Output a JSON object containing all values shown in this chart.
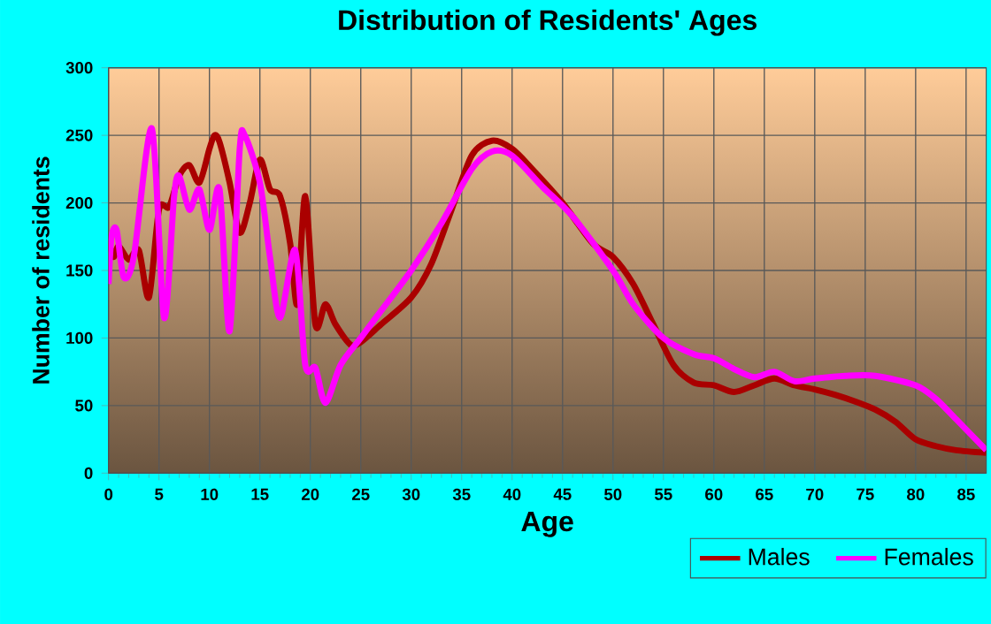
{
  "chart_data": {
    "type": "line",
    "title": "Distribution of Residents' Ages",
    "xlabel": "Age",
    "ylabel": "Number of residents",
    "xlim": [
      0,
      87
    ],
    "ylim": [
      0,
      300
    ],
    "xticks": [
      0,
      5,
      10,
      15,
      20,
      25,
      30,
      35,
      40,
      45,
      50,
      55,
      60,
      65,
      70,
      75,
      80,
      85
    ],
    "yticks": [
      0,
      50,
      100,
      150,
      200,
      250,
      300
    ],
    "grid": true,
    "legend": "bottom right",
    "marker": "none",
    "line_style": "solid",
    "series": [
      {
        "name": "Males",
        "color": "#aa0000",
        "x": [
          0,
          0.5,
          1,
          2,
          3,
          4,
          5,
          6,
          7,
          8,
          9,
          10,
          10.5,
          11,
          12,
          13,
          14,
          15,
          16,
          17,
          18,
          18.7,
          19.5,
          20.5,
          21.5,
          22.5,
          24,
          25,
          27,
          30,
          32,
          34,
          36,
          38,
          40,
          42,
          45,
          48,
          50,
          52,
          54,
          56,
          58,
          60,
          62,
          64,
          66,
          68,
          70,
          72,
          74,
          76,
          78,
          80,
          82,
          84,
          87
        ],
        "values": [
          172,
          160,
          168,
          158,
          165,
          130,
          195,
          197,
          220,
          228,
          215,
          240,
          250,
          245,
          215,
          178,
          200,
          232,
          210,
          205,
          170,
          125,
          205,
          110,
          125,
          110,
          95,
          97,
          110,
          130,
          155,
          195,
          235,
          246,
          240,
          225,
          200,
          170,
          160,
          140,
          110,
          80,
          67,
          65,
          60,
          65,
          70,
          65,
          62,
          58,
          53,
          47,
          38,
          25,
          20,
          17,
          15
        ]
      },
      {
        "name": "Females",
        "color": "#ff00ff",
        "x": [
          0,
          0.3,
          0.8,
          1.5,
          2.5,
          4.3,
          5.5,
          6.5,
          7,
          8,
          9,
          10,
          11,
          12,
          13,
          13.5,
          15,
          16,
          17,
          18.5,
          19.5,
          20.5,
          21.5,
          23,
          25,
          27,
          30,
          33,
          36,
          38,
          40,
          43,
          46,
          50,
          52,
          55,
          58,
          60,
          62,
          64,
          66,
          68,
          70,
          73,
          76,
          80,
          82,
          84,
          87
        ],
        "values": [
          140,
          175,
          180,
          145,
          160,
          255,
          115,
          205,
          220,
          195,
          210,
          180,
          210,
          105,
          240,
          250,
          215,
          160,
          115,
          165,
          80,
          78,
          52,
          80,
          100,
          120,
          150,
          185,
          225,
          238,
          235,
          212,
          190,
          150,
          125,
          100,
          88,
          85,
          77,
          71,
          75,
          68,
          70,
          72,
          72,
          65,
          55,
          40,
          17
        ]
      }
    ]
  }
}
